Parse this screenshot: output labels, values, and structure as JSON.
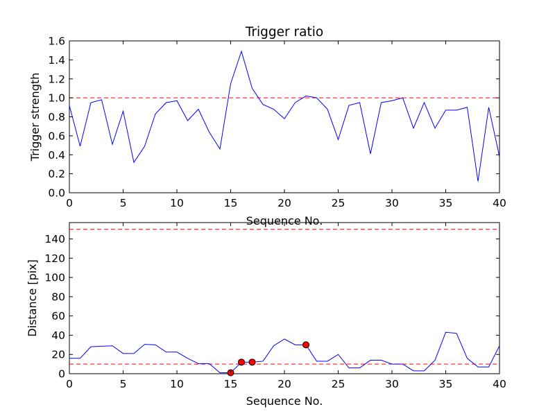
{
  "chart_data": [
    {
      "type": "line",
      "title": "Trigger ratio",
      "xlabel": "Sequence No.",
      "ylabel": "Trigger strength",
      "xlim": [
        0,
        40
      ],
      "ylim": [
        0,
        1.6
      ],
      "xticks": [
        0,
        5,
        10,
        15,
        20,
        25,
        30,
        35,
        40
      ],
      "yticks": [
        0.0,
        0.2,
        0.4,
        0.6,
        0.8,
        1.0,
        1.2,
        1.4,
        1.6
      ],
      "xtick_labels": [
        "0",
        "5",
        "10",
        "15",
        "20",
        "25",
        "30",
        "35",
        "40"
      ],
      "ytick_labels": [
        "0.0",
        "0.2",
        "0.4",
        "0.6",
        "0.8",
        "1.0",
        "1.2",
        "1.4",
        "1.6"
      ],
      "series": [
        {
          "name": "trigger strength",
          "color": "#0000ff",
          "x": [
            0,
            1,
            2,
            3,
            4,
            5,
            6,
            7,
            8,
            9,
            10,
            11,
            12,
            13,
            14,
            15,
            16,
            17,
            18,
            19,
            20,
            21,
            22,
            23,
            24,
            25,
            26,
            27,
            28,
            29,
            30,
            31,
            32,
            33,
            34,
            35,
            36,
            37,
            38,
            39,
            40
          ],
          "values": [
            0.92,
            0.49,
            0.95,
            0.98,
            0.51,
            0.86,
            0.32,
            0.49,
            0.83,
            0.95,
            0.97,
            0.76,
            0.88,
            0.64,
            0.46,
            1.15,
            1.49,
            1.1,
            0.93,
            0.88,
            0.78,
            0.95,
            1.02,
            1.0,
            0.88,
            0.56,
            0.92,
            0.95,
            0.41,
            0.95,
            0.97,
            1.0,
            0.68,
            0.95,
            0.68,
            0.87,
            0.87,
            0.9,
            0.12,
            0.9,
            0.38
          ]
        }
      ],
      "hlines": [
        {
          "y": 1.0,
          "color": "#ff0000",
          "style": "dashed"
        }
      ]
    },
    {
      "type": "line",
      "title": "",
      "xlabel": "Sequence No.",
      "ylabel": "Distance [pix]",
      "xlim": [
        0,
        40
      ],
      "ylim": [
        0,
        157
      ],
      "xticks": [
        0,
        5,
        10,
        15,
        20,
        25,
        30,
        35,
        40
      ],
      "yticks": [
        0,
        20,
        40,
        60,
        80,
        100,
        120,
        140
      ],
      "xtick_labels": [
        "0",
        "5",
        "10",
        "15",
        "20",
        "25",
        "30",
        "35",
        "40"
      ],
      "ytick_labels": [
        "0",
        "20",
        "40",
        "60",
        "80",
        "100",
        "120",
        "140"
      ],
      "series": [
        {
          "name": "distance",
          "color": "#0000ff",
          "x": [
            0,
            1,
            2,
            3,
            4,
            5,
            6,
            7,
            8,
            9,
            10,
            11,
            12,
            13,
            14,
            15,
            16,
            17,
            18,
            19,
            20,
            21,
            22,
            23,
            24,
            25,
            26,
            27,
            28,
            29,
            30,
            31,
            32,
            33,
            34,
            35,
            36,
            37,
            38,
            39,
            40
          ],
          "values": [
            16,
            16,
            28,
            28.5,
            29,
            21,
            21,
            30.5,
            30,
            22.5,
            22.5,
            16,
            10.5,
            10.5,
            1,
            1,
            12,
            12,
            13,
            29,
            36,
            30,
            30,
            13,
            13,
            20,
            6,
            6,
            14,
            14,
            10,
            10,
            3,
            3,
            14,
            43,
            42,
            16,
            7,
            7,
            29
          ]
        }
      ],
      "markers": {
        "color": "#ff0000",
        "x": [
          15,
          16,
          17,
          22
        ],
        "y": [
          1,
          12,
          12,
          30
        ]
      },
      "hlines": [
        {
          "y": 150,
          "color": "#ff0000",
          "style": "dashed"
        },
        {
          "y": 10,
          "color": "#ff0000",
          "style": "dashed"
        }
      ]
    }
  ]
}
